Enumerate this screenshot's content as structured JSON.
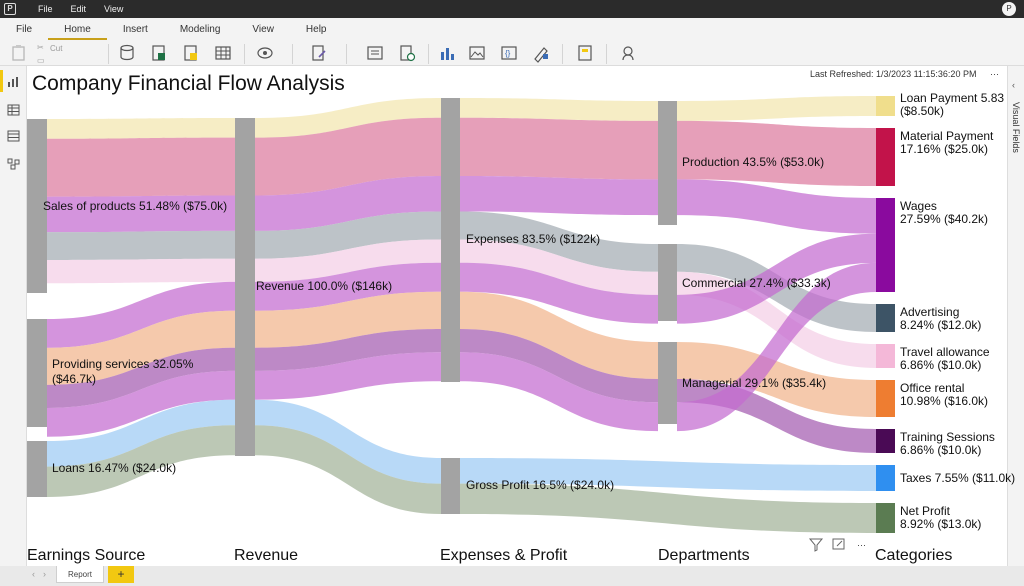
{
  "app": {
    "menu": [
      "File",
      "Edit",
      "View"
    ],
    "user_initial": "P"
  },
  "ribbon": {
    "tabs": [
      "File",
      "Home",
      "Insert",
      "Modeling",
      "View",
      "Help"
    ],
    "active_tab": "Home",
    "cut_label": "Cut"
  },
  "right_pane": {
    "label": "Visual Fields"
  },
  "report": {
    "title": "Company Financial Flow Analysis",
    "last_refreshed": "Last Refreshed: 1/3/2023 11:15:36:20 PM",
    "more_options": "···"
  },
  "chart_data": {
    "type": "sankey",
    "title": "Company Financial Flow Analysis",
    "columns": [
      "Earnings Source",
      "Revenue",
      "Expenses & Profit",
      "Departments",
      "Categories"
    ],
    "nodes": [
      {
        "id": "sales",
        "column": 0,
        "label": "Sales of products 51.48% ($75.0k)",
        "value": 75.0
      },
      {
        "id": "services",
        "column": 0,
        "label": "Providing services 32.05% ($46.7k)",
        "value": 46.7
      },
      {
        "id": "loans",
        "column": 0,
        "label": "Loans 16.47% ($24.0k)",
        "value": 24.0
      },
      {
        "id": "revenue",
        "column": 1,
        "label": "Revenue 100.0% ($146k)",
        "value": 146
      },
      {
        "id": "expenses",
        "column": 2,
        "label": "Expenses 83.5% ($122k)",
        "value": 122
      },
      {
        "id": "gross",
        "column": 2,
        "label": "Gross Profit 16.5% ($24.0k)",
        "value": 24.0
      },
      {
        "id": "production",
        "column": 3,
        "label": "Production 43.5% ($53.0k)",
        "value": 53.0
      },
      {
        "id": "commercial",
        "column": 3,
        "label": "Commercial 27.4% ($33.3k)",
        "value": 33.3
      },
      {
        "id": "managerial",
        "column": 3,
        "label": "Managerial 29.1% ($35.4k)",
        "value": 35.4
      },
      {
        "id": "loanpay",
        "column": 4,
        "label": "Loan Payment 5.83 ($8.50k)",
        "value": 8.5,
        "color": "#f0de8c"
      },
      {
        "id": "material",
        "column": 4,
        "label": "Material Payment 17.16% ($25.0k)",
        "value": 25.0,
        "color": "#c2134a"
      },
      {
        "id": "wages",
        "column": 4,
        "label": "Wages 27.59% ($40.2k)",
        "value": 40.2,
        "color": "#8a0a9e"
      },
      {
        "id": "advertising",
        "column": 4,
        "label": "Advertising 8.24% ($12.0k)",
        "value": 12.0,
        "color": "#3d5466"
      },
      {
        "id": "travel",
        "column": 4,
        "label": "Travel allowance 6.86% ($10.0k)",
        "value": 10.0,
        "color": "#f4b8d8"
      },
      {
        "id": "office",
        "column": 4,
        "label": "Office rental 10.98% ($16.0k)",
        "value": 16.0,
        "color": "#ee7d31"
      },
      {
        "id": "training",
        "column": 4,
        "label": "Training Sessions 6.86% ($10.0k)",
        "value": 10.0,
        "color": "#4a0a55"
      },
      {
        "id": "taxes",
        "column": 4,
        "label": "Taxes 7.55% ($11.0k)",
        "value": 11.0,
        "color": "#2f8ff0"
      },
      {
        "id": "netprofit",
        "column": 4,
        "label": "Net Profit 8.92% ($13.0k)",
        "value": 13.0,
        "color": "#5b7c52"
      }
    ],
    "flow_colors": {
      "loanpay": "#f2e6ae",
      "material": "#dd7a9e",
      "wages": "#c36bd0",
      "advertising": "#a3acb3",
      "travel": "#f4cfe6",
      "office": "#f1b48c",
      "training": "#a45cb0",
      "taxes": "#9ccaf4",
      "netprofit": "#a2b398"
    },
    "node_bar_color": "#a3a3a3"
  },
  "bottom": {
    "page_tab": "Report",
    "add_label": "+"
  }
}
